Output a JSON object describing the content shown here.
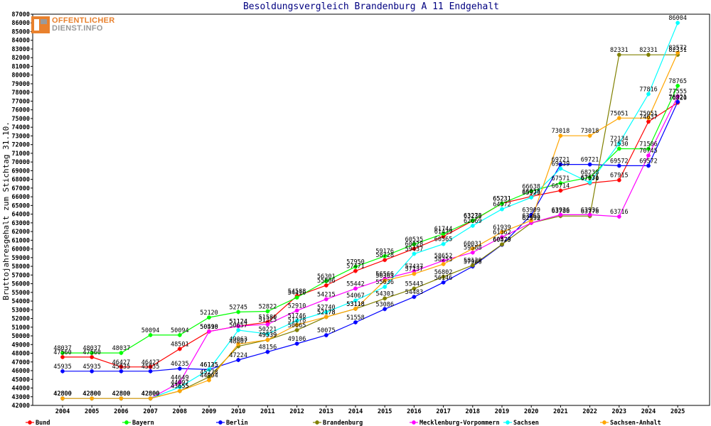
{
  "logo": {
    "line1": "OFFENTLICHER",
    "line2": "DIENST.INFO"
  },
  "chart_data": {
    "type": "line",
    "title": "Besoldungsvergleich Brandenburg A 11 Endgehalt",
    "xlabel": "",
    "ylabel": "Bruttojahresgehalt zum Stichtag 31.10.",
    "ylim": [
      42000,
      87000
    ],
    "ytick_step": 1000,
    "grid": false,
    "legend_position": "bottom",
    "categories": [
      "2004",
      "2005",
      "2006",
      "2007",
      "2008",
      "2009",
      "2010",
      "2011",
      "2012",
      "2013",
      "2014",
      "2015",
      "2016",
      "2017",
      "2018",
      "2019",
      "2020",
      "2021",
      "2022",
      "2023",
      "2024",
      "2025"
    ],
    "series": [
      {
        "name": "Bund",
        "color": "#ff0000",
        "values": [
          47560,
          47560,
          46427,
          46427,
          48501,
          50510,
          51124,
          51580,
          54588,
          55806,
          57471,
          58728,
          60028,
          61439,
          63236,
          65231,
          66038,
          66714,
          67570,
          67915,
          74637,
          76820
        ]
      },
      {
        "name": "Bayern",
        "color": "#00ff00",
        "values": [
          48037,
          48037,
          48037,
          50094,
          50094,
          52120,
          52745,
          52822,
          54410,
          56301,
          57950,
          59176,
          60535,
          61744,
          63273,
          65231,
          66638,
          67571,
          68238,
          71530,
          71506,
          78765
        ]
      },
      {
        "name": "Berlin",
        "color": "#0000ff",
        "values": [
          45935,
          45935,
          45935,
          45935,
          46235,
          46135,
          47224,
          48156,
          49106,
          50075,
          51558,
          53086,
          54483,
          56146,
          57986,
          60479,
          63909,
          69721,
          69721,
          69572,
          69572,
          76921
        ]
      },
      {
        "name": "Brandenburg",
        "color": "#808000",
        "values": [
          42800,
          42800,
          42800,
          42800,
          43655,
          45278,
          48807,
          49539,
          50665,
          52178,
          53118,
          54303,
          55443,
          56802,
          58120,
          60523,
          62992,
          63788,
          63778,
          82331,
          82331,
          82331
        ]
      },
      {
        "name": "Mecklenburg-Vorpommern",
        "color": "#ff00ff",
        "values": [
          42800,
          42800,
          42800,
          42800,
          44649,
          50498,
          51124,
          51325,
          52910,
          54215,
          55442,
          56566,
          57437,
          58652,
          59588,
          61362,
          62999,
          63936,
          63936,
          63716,
          70745,
          77555
        ]
      },
      {
        "name": "Sachsen",
        "color": "#00ffff",
        "values": [
          42800,
          42800,
          42800,
          42800,
          44097,
          46125,
          50657,
          50221,
          51746,
          52740,
          54067,
          55636,
          59437,
          60565,
          62669,
          64572,
          65923,
          69239,
          67631,
          72134,
          77816,
          86004
        ]
      },
      {
        "name": "Sachsen-Anhalt",
        "color": "#ffa500",
        "values": [
          42800,
          42800,
          42800,
          42800,
          43655,
          44904,
          49063,
          49539,
          51278,
          52178,
          53118,
          56363,
          57137,
          58253,
          60031,
          61939,
          63265,
          73018,
          73018,
          75051,
          75051,
          82572
        ]
      }
    ]
  }
}
